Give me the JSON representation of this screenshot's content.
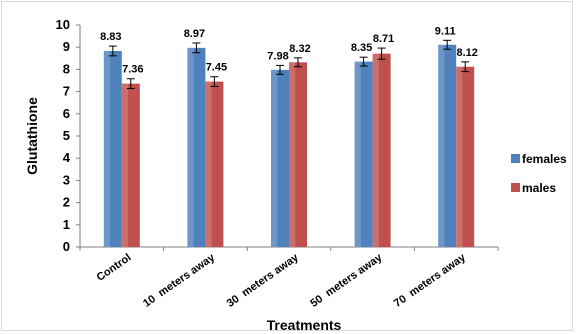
{
  "chart_data": {
    "type": "bar",
    "title": "",
    "xlabel": "Treatments",
    "ylabel": "Glutathione",
    "ylim": [
      0,
      10
    ],
    "yticks": [
      0,
      1,
      2,
      3,
      4,
      5,
      6,
      7,
      8,
      9,
      10
    ],
    "categories": [
      "Control",
      "10  meters away",
      "30  meters away",
      "50  meters away",
      "70  meters away"
    ],
    "series": [
      {
        "name": "females",
        "values": [
          8.83,
          8.97,
          7.98,
          8.35,
          9.11
        ],
        "labels": [
          "8.83",
          "8.97",
          "7.98",
          "8.35",
          "9.11"
        ],
        "error": [
          0.22,
          0.22,
          0.2,
          0.2,
          0.2
        ],
        "color": "#4f81bd"
      },
      {
        "name": "males",
        "values": [
          7.36,
          7.45,
          8.32,
          8.71,
          8.12
        ],
        "labels": [
          "7.36",
          "7.45",
          "8.32",
          "8.71",
          "8.12"
        ],
        "error": [
          0.22,
          0.22,
          0.2,
          0.25,
          0.22
        ],
        "color": "#c0504d"
      }
    ],
    "grid": false,
    "legend_position": "right"
  }
}
